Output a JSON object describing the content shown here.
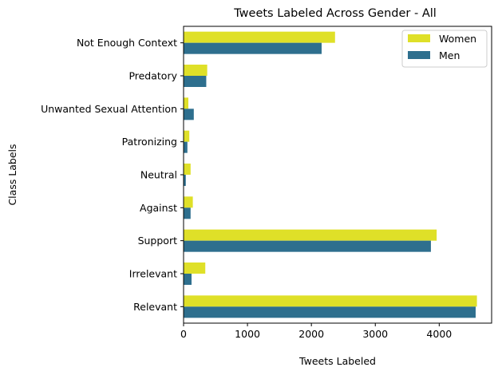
{
  "chart_data": {
    "type": "bar",
    "orientation": "horizontal",
    "title": "Tweets Labeled Across Gender - All",
    "xlabel": "Tweets Labeled",
    "ylabel": "Class Labels",
    "categories": [
      "Not Enough Context",
      "Predatory",
      "Unwanted Sexual Attention",
      "Patronizing",
      "Neutral",
      "Against",
      "Support",
      "Irrelevant",
      "Relevant"
    ],
    "series": [
      {
        "name": "Women",
        "color": "#dfe028",
        "values": [
          2370,
          370,
          75,
          90,
          110,
          145,
          3960,
          340,
          4590
        ]
      },
      {
        "name": "Men",
        "color": "#2e6f8e",
        "values": [
          2160,
          355,
          160,
          60,
          35,
          110,
          3870,
          125,
          4570
        ]
      }
    ],
    "xlim": [
      0,
      4820
    ],
    "xticks": [
      0,
      1000,
      2000,
      3000,
      4000
    ],
    "grid": false,
    "legend_position": "top-right"
  }
}
